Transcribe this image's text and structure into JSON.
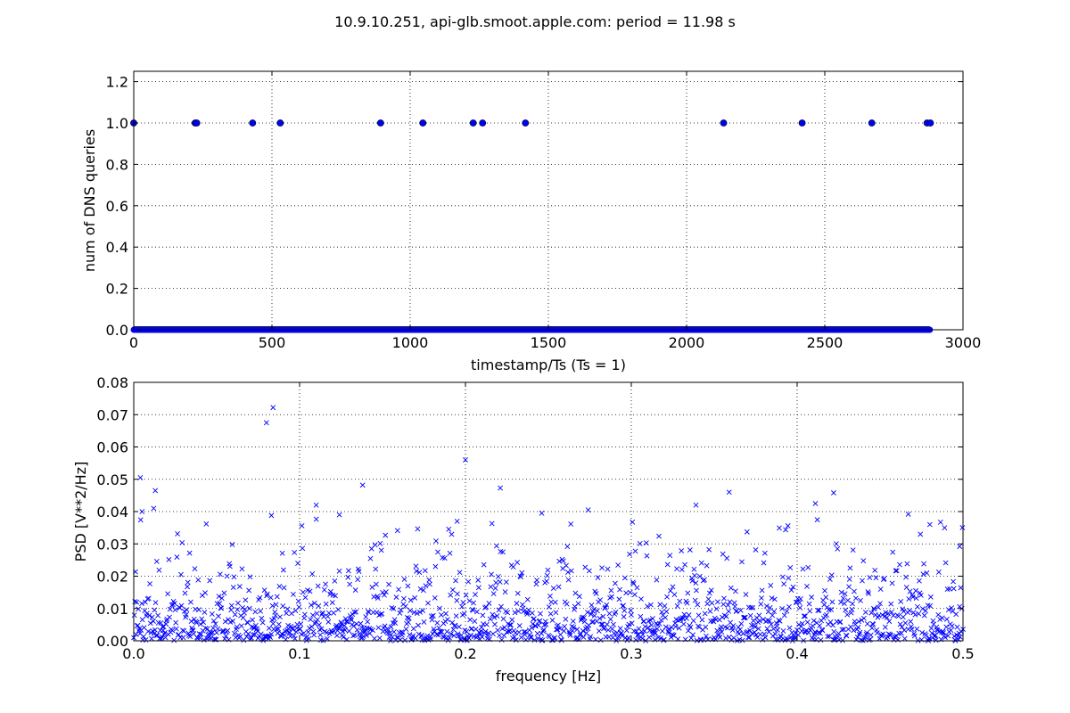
{
  "figure": {
    "title": "10.9.10.251, api-glb.smoot.apple.com: period = 11.98 s"
  },
  "colors": {
    "series": "#0000ff",
    "marker_fill": "#0000ff",
    "marker_edge": "#000000",
    "grid": "#000000",
    "frame": "#000000",
    "background": "#ffffff"
  },
  "chart_data": [
    {
      "type": "scatter",
      "marker": "circle",
      "xlabel": "timestamp/Ts (Ts = 1)",
      "ylabel": "num of DNS queries",
      "xlim": [
        0,
        3000
      ],
      "ylim": [
        0,
        1.25
      ],
      "xticks": [
        0,
        500,
        1000,
        1500,
        2000,
        2500,
        3000
      ],
      "xtick_labels": [
        "0",
        "500",
        "1000",
        "1500",
        "2000",
        "2500",
        "3000"
      ],
      "yticks": [
        0,
        0.2,
        0.4,
        0.6,
        0.8,
        1.0,
        1.2
      ],
      "ytick_labels": [
        "0.0",
        "0.2",
        "0.4",
        "0.6",
        "0.8",
        "1.0",
        "1.2"
      ],
      "grid": true,
      "baseline": {
        "y": 0,
        "x_from": 0,
        "x_to": 2880,
        "note": "all other timestamps have 0 queries"
      },
      "points": [
        {
          "x": 0,
          "y": 1
        },
        {
          "x": 222,
          "y": 1
        },
        {
          "x": 228,
          "y": 1
        },
        {
          "x": 430,
          "y": 1
        },
        {
          "x": 530,
          "y": 1
        },
        {
          "x": 893,
          "y": 1
        },
        {
          "x": 1046,
          "y": 1
        },
        {
          "x": 1228,
          "y": 1
        },
        {
          "x": 1262,
          "y": 1
        },
        {
          "x": 1417,
          "y": 1
        },
        {
          "x": 2134,
          "y": 1
        },
        {
          "x": 2418,
          "y": 1
        },
        {
          "x": 2670,
          "y": 1
        },
        {
          "x": 2870,
          "y": 1
        },
        {
          "x": 2882,
          "y": 1
        }
      ]
    },
    {
      "type": "scatter",
      "marker": "x",
      "xlabel": "frequency [Hz]",
      "ylabel": "PSD [V**2/Hz]",
      "xlim": [
        0,
        0.5
      ],
      "ylim": [
        0,
        0.08
      ],
      "xticks": [
        0,
        0.1,
        0.2,
        0.3,
        0.4,
        0.5
      ],
      "xtick_labels": [
        "0.0",
        "0.1",
        "0.2",
        "0.3",
        "0.4",
        "0.5"
      ],
      "yticks": [
        0,
        0.01,
        0.02,
        0.03,
        0.04,
        0.05,
        0.06,
        0.07,
        0.08
      ],
      "ytick_labels": [
        "0.00",
        "0.01",
        "0.02",
        "0.03",
        "0.04",
        "0.05",
        "0.06",
        "0.07",
        "0.08"
      ],
      "grid": true,
      "n_bins": 1441,
      "outliers": [
        {
          "x": 0.08,
          "y": 0.0675
        },
        {
          "x": 0.084,
          "y": 0.0722
        },
        {
          "x": 0.004,
          "y": 0.0505
        },
        {
          "x": 0.2,
          "y": 0.056
        },
        {
          "x": 0.138,
          "y": 0.0482
        },
        {
          "x": 0.221,
          "y": 0.0473
        },
        {
          "x": 0.013,
          "y": 0.0465
        },
        {
          "x": 0.359,
          "y": 0.046
        },
        {
          "x": 0.422,
          "y": 0.0458
        },
        {
          "x": 0.411,
          "y": 0.0425
        },
        {
          "x": 0.11,
          "y": 0.042
        },
        {
          "x": 0.339,
          "y": 0.042
        },
        {
          "x": 0.012,
          "y": 0.041
        },
        {
          "x": 0.274,
          "y": 0.0405
        },
        {
          "x": 0.005,
          "y": 0.04
        },
        {
          "x": 0.246,
          "y": 0.0395
        },
        {
          "x": 0.467,
          "y": 0.0392
        },
        {
          "x": 0.083,
          "y": 0.0388
        },
        {
          "x": 0.124,
          "y": 0.039
        },
        {
          "x": 0.195,
          "y": 0.037
        },
        {
          "x": 0.48,
          "y": 0.036
        },
        {
          "x": 0.498,
          "y": 0.0292
        }
      ]
    }
  ]
}
